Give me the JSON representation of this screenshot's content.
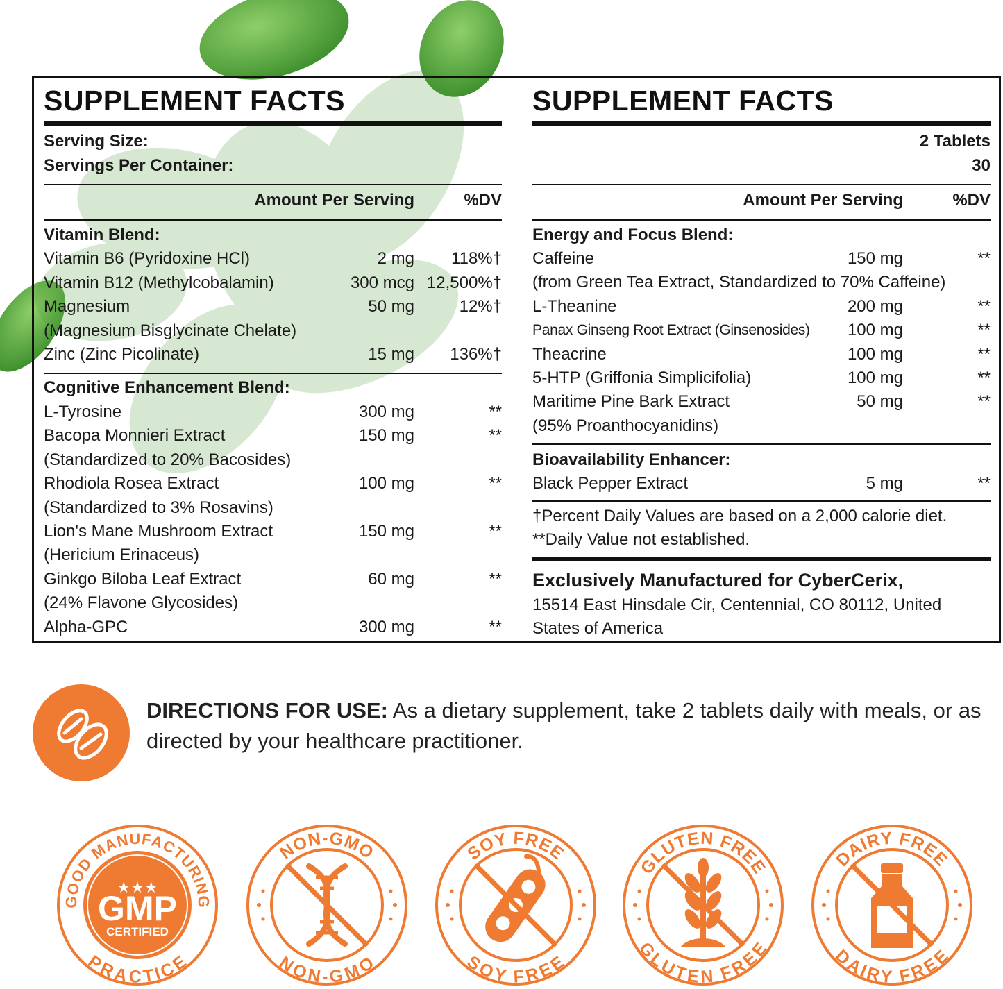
{
  "colors": {
    "accent": "#ef7a32",
    "text": "#1a1a1a",
    "rule": "#111111"
  },
  "left": {
    "title": "SUPPLEMENT FACTS",
    "serving_size_label": "Serving Size:",
    "servings_label": "Servings Per Container:",
    "col_amount": "Amount Per Serving",
    "col_dv": "%DV",
    "vitamin_header": "Vitamin Blend:",
    "vitamins": [
      {
        "name": "Vitamin B6 (Pyridoxine HCl)",
        "amount": "2 mg",
        "dv": "118%†"
      },
      {
        "name": "Vitamin B12 (Methylcobalamin)",
        "amount": "300 mcg",
        "dv": "12,500%†"
      },
      {
        "name": "Magnesium",
        "amount": "50 mg",
        "dv": "12%†"
      },
      {
        "name": "(Magnesium Bisglycinate Chelate)",
        "amount": "",
        "dv": ""
      },
      {
        "name": "Zinc (Zinc Picolinate)",
        "amount": "15 mg",
        "dv": "136%†"
      }
    ],
    "cognitive_header": "Cognitive Enhancement Blend:",
    "cognitive": [
      {
        "name": "L-Tyrosine",
        "amount": "300 mg",
        "dv": "**"
      },
      {
        "name": "Bacopa Monnieri Extract",
        "amount": "150 mg",
        "dv": "**"
      },
      {
        "name": "(Standardized to 20% Bacosides)",
        "amount": "",
        "dv": ""
      },
      {
        "name": "Rhodiola Rosea Extract",
        "amount": "100 mg",
        "dv": "**"
      },
      {
        "name": "(Standardized to 3% Rosavins)",
        "amount": "",
        "dv": ""
      },
      {
        "name": "Lion's Mane Mushroom Extract",
        "amount": "150 mg",
        "dv": "**"
      },
      {
        "name": "(Hericium Erinaceus)",
        "amount": "",
        "dv": ""
      },
      {
        "name": "Ginkgo Biloba Leaf Extract",
        "amount": "60 mg",
        "dv": "**"
      },
      {
        "name": "(24% Flavone Glycosides)",
        "amount": "",
        "dv": ""
      },
      {
        "name": "Alpha-GPC",
        "amount": "300 mg",
        "dv": "**"
      }
    ]
  },
  "right": {
    "title": "SUPPLEMENT FACTS",
    "serving_size_value": "2 Tablets",
    "servings_value": "30",
    "col_amount": "Amount Per Serving",
    "col_dv": "%DV",
    "energy_header": "Energy and Focus Blend:",
    "energy": [
      {
        "name": "Caffeine",
        "amount": "150 mg",
        "dv": "**"
      },
      {
        "name": "(from Green Tea Extract, Standardized to 70% Caffeine)",
        "amount": "",
        "dv": ""
      },
      {
        "name": "L-Theanine",
        "amount": "200 mg",
        "dv": "**"
      },
      {
        "name": "Panax Ginseng Root Extract (Ginsenosides)",
        "amount": "100 mg",
        "dv": "**"
      },
      {
        "name": "Theacrine",
        "amount": "100 mg",
        "dv": "**"
      },
      {
        "name": "5-HTP (Griffonia Simplicifolia)",
        "amount": "100 mg",
        "dv": "**"
      },
      {
        "name": "Maritime Pine Bark Extract",
        "amount": "50 mg",
        "dv": "**"
      },
      {
        "name": "(95% Proanthocyanidins)",
        "amount": "",
        "dv": ""
      }
    ],
    "bio_header": "Bioavailability Enhancer:",
    "bio": [
      {
        "name": "Black Pepper Extract",
        "amount": "5 mg",
        "dv": "**"
      }
    ],
    "footnote1": "†Percent Daily Values are based on a 2,000 calorie diet.",
    "footnote2": "**Daily Value not established.",
    "mfr_title": "Exclusively Manufactured for CyberCerix,",
    "mfr_line1": "15514 East Hinsdale Cir, Centennial, CO 80112, United",
    "mfr_line2": "States of America"
  },
  "directions": {
    "label": "DIRECTIONS FOR USE:",
    "text": " As a dietary supplement, take 2 tablets daily with meals, or as directed by your healthcare practitioner."
  },
  "badges": [
    {
      "icon": "gmp-certified-icon",
      "top": "GOOD MANUFACTURING",
      "bottom": "PRACTICE",
      "center": "GMP",
      "center2": "CERTIFIED"
    },
    {
      "icon": "dna-icon",
      "top": "NON-GMO",
      "bottom": "NON-GMO"
    },
    {
      "icon": "soybean-icon",
      "top": "SOY FREE",
      "bottom": "SOY FREE"
    },
    {
      "icon": "wheat-icon",
      "top": "GLUTEN FREE",
      "bottom": "GLUTEN FREE"
    },
    {
      "icon": "milk-bottle-icon",
      "top": "DAIRY FREE",
      "bottom": "DAIRY FREE"
    }
  ]
}
